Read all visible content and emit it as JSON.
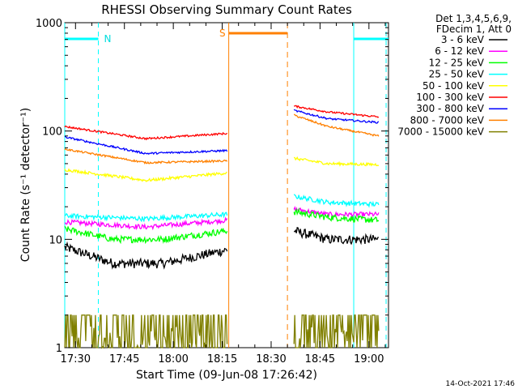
{
  "chart_data": {
    "type": "line",
    "title": "RHESSI Observing Summary Count Rates",
    "xlabel": "Start Time (09-Jun-08 17:26:42)",
    "ylabel": "Count Rate (s⁻¹ detector⁻¹)",
    "y_scale": "log",
    "ylim": [
      1,
      1000
    ],
    "y_ticks": [
      {
        "value": 1,
        "label": "1"
      },
      {
        "value": 10,
        "label": "10"
      },
      {
        "value": 100,
        "label": "100"
      },
      {
        "value": 1000,
        "label": "1000"
      }
    ],
    "xlim": [
      "17:26:42",
      "19:06:00"
    ],
    "x_ticks": [
      "17:30",
      "17:45",
      "18:00",
      "18:15",
      "18:30",
      "18:45",
      "19:00"
    ],
    "legend_header": [
      "Det 1,3,4,5,6,9,",
      "FDecim 1, Att 0"
    ],
    "legend_position": "right",
    "intervals": {
      "night": [
        {
          "start": "17:26:42",
          "end": "17:37:00"
        },
        {
          "start": "18:55:20",
          "end": "19:06:00"
        }
      ],
      "saa": {
        "start": "18:17:00",
        "end": "18:35:00"
      },
      "night_label": "N",
      "saa_label": "S"
    },
    "data_segments": [
      {
        "start": "17:26:42",
        "end": "18:16:30"
      },
      {
        "start": "18:37:00",
        "end": "19:03:00"
      }
    ],
    "series": [
      {
        "name": "3 - 6 keV",
        "color": "#000000",
        "seg1": [
          [
            0,
            8.5
          ],
          [
            0.3,
            6.0
          ],
          [
            0.6,
            6.0
          ],
          [
            1,
            8.0
          ]
        ],
        "seg2": [
          [
            0,
            12
          ],
          [
            0.4,
            10
          ],
          [
            1,
            10
          ]
        ],
        "noise": 0.1
      },
      {
        "name": "6 - 12 keV",
        "color": "#ff00ff",
        "seg1": [
          [
            0,
            14.5
          ],
          [
            0.5,
            13.0
          ],
          [
            1,
            15.0
          ]
        ],
        "seg2": [
          [
            0,
            19
          ],
          [
            0.4,
            17
          ],
          [
            1,
            17
          ]
        ],
        "noise": 0.05
      },
      {
        "name": "12 - 25 keV",
        "color": "#00ff00",
        "seg1": [
          [
            0,
            12.5
          ],
          [
            0.3,
            10.0
          ],
          [
            0.6,
            10.0
          ],
          [
            1,
            12.0
          ]
        ],
        "seg2": [
          [
            0,
            18
          ],
          [
            0.4,
            16
          ],
          [
            1,
            15
          ]
        ],
        "noise": 0.07
      },
      {
        "name": "25 - 50 keV",
        "color": "#00ffff",
        "seg1": [
          [
            0,
            16.5
          ],
          [
            0.5,
            15.5
          ],
          [
            1,
            17.0
          ]
        ],
        "seg2": [
          [
            0,
            25
          ],
          [
            0.4,
            22
          ],
          [
            1,
            21
          ]
        ],
        "noise": 0.05
      },
      {
        "name": "50 - 100 keV",
        "color": "#ffff00",
        "seg1": [
          [
            0,
            44
          ],
          [
            0.5,
            35
          ],
          [
            1,
            41
          ]
        ],
        "seg2": [
          [
            0,
            56
          ],
          [
            0.4,
            50
          ],
          [
            1,
            49
          ]
        ],
        "noise": 0.03
      },
      {
        "name": "100 - 300 keV",
        "color": "#ff0000",
        "seg1": [
          [
            0,
            110
          ],
          [
            0.5,
            85
          ],
          [
            1,
            95
          ]
        ],
        "seg2": [
          [
            0,
            170
          ],
          [
            0.4,
            150
          ],
          [
            1,
            135
          ]
        ],
        "noise": 0.02
      },
      {
        "name": "300 - 800 keV",
        "color": "#0000ff",
        "seg1": [
          [
            0,
            88
          ],
          [
            0.5,
            62
          ],
          [
            1,
            66
          ]
        ],
        "seg2": [
          [
            0,
            155
          ],
          [
            0.4,
            130
          ],
          [
            1,
            120
          ]
        ],
        "noise": 0.02
      },
      {
        "name": "800 - 7000 keV",
        "color": "#ff8000",
        "seg1": [
          [
            0,
            68
          ],
          [
            0.5,
            51
          ],
          [
            1,
            53
          ]
        ],
        "seg2": [
          [
            0,
            140
          ],
          [
            0.4,
            110
          ],
          [
            1,
            90
          ]
        ],
        "noise": 0.02
      },
      {
        "name": "7000 - 15000 keV",
        "color": "#808000",
        "seg1": [
          [
            0,
            2.0
          ],
          [
            1,
            2.0
          ]
        ],
        "seg2": [
          [
            0,
            1.8
          ],
          [
            1,
            2.0
          ]
        ],
        "noise": 0.35,
        "discrete": true
      }
    ]
  },
  "footer": {
    "timestamp": "14-Oct-2021 17:46"
  }
}
